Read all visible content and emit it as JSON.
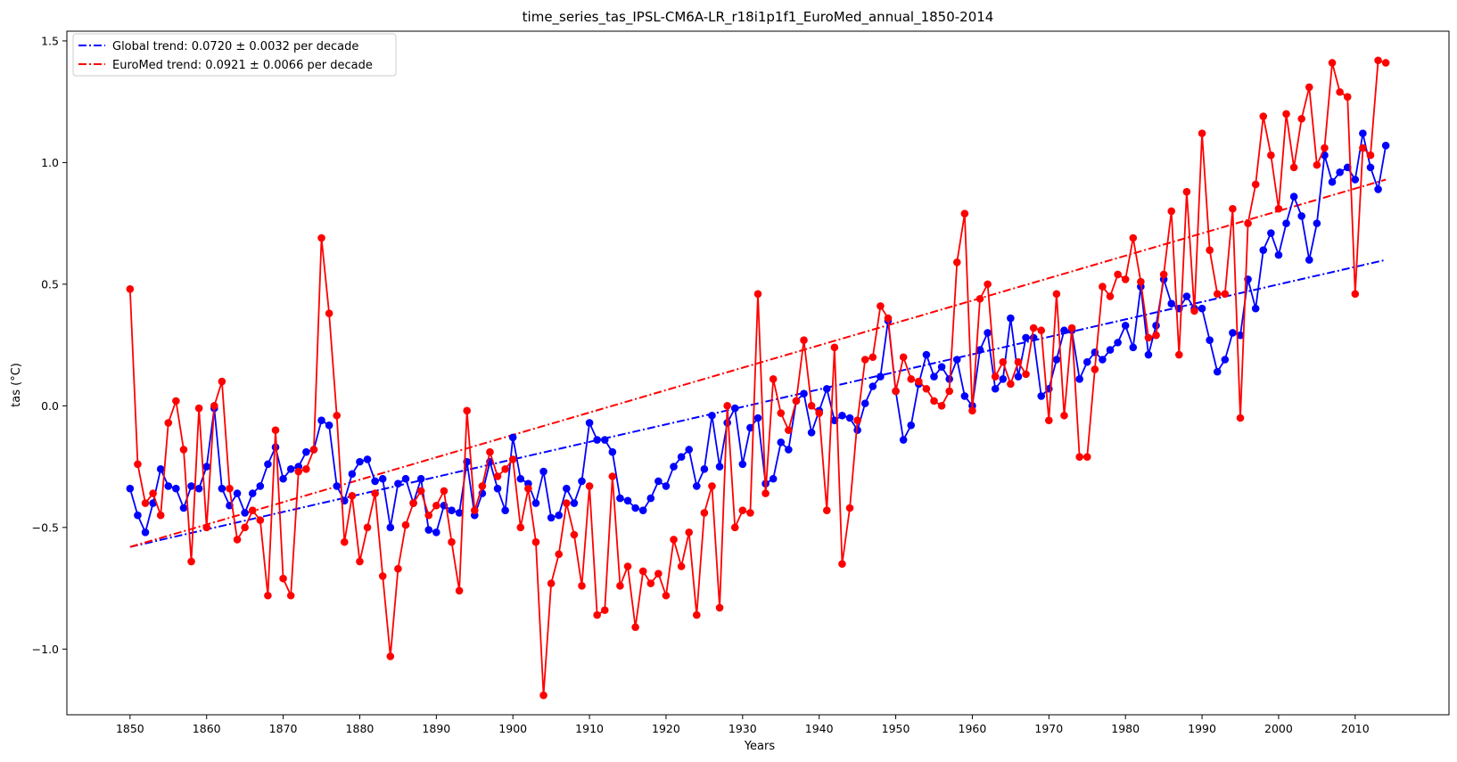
{
  "chart_data": {
    "type": "line",
    "title": "time_series_tas_IPSL-CM6A-LR_r18i1p1f1_EuroMed_annual_1850-2014",
    "xlabel": "Years",
    "ylabel": "tas (°C)",
    "xlim": [
      1841.75,
      2022.25
    ],
    "ylim": [
      -1.27,
      1.54
    ],
    "xticks": [
      1850,
      1860,
      1870,
      1880,
      1890,
      1900,
      1910,
      1920,
      1930,
      1940,
      1950,
      1960,
      1970,
      1980,
      1990,
      2000,
      2010
    ],
    "yticks": [
      -1.0,
      -0.5,
      0.0,
      0.5,
      1.0,
      1.5
    ],
    "ytick_labels": [
      "−1.0",
      "−0.5",
      "0.0",
      "0.5",
      "1.0",
      "1.5"
    ],
    "grid": false,
    "legend_position": "top-left",
    "x": [
      1850,
      1851,
      1852,
      1853,
      1854,
      1855,
      1856,
      1857,
      1858,
      1859,
      1860,
      1861,
      1862,
      1863,
      1864,
      1865,
      1866,
      1867,
      1868,
      1869,
      1870,
      1871,
      1872,
      1873,
      1874,
      1875,
      1876,
      1877,
      1878,
      1879,
      1880,
      1881,
      1882,
      1883,
      1884,
      1885,
      1886,
      1887,
      1888,
      1889,
      1890,
      1891,
      1892,
      1893,
      1894,
      1895,
      1896,
      1897,
      1898,
      1899,
      1900,
      1901,
      1902,
      1903,
      1904,
      1905,
      1906,
      1907,
      1908,
      1909,
      1910,
      1911,
      1912,
      1913,
      1914,
      1915,
      1916,
      1917,
      1918,
      1919,
      1920,
      1921,
      1922,
      1923,
      1924,
      1925,
      1926,
      1927,
      1928,
      1929,
      1930,
      1931,
      1932,
      1933,
      1934,
      1935,
      1936,
      1937,
      1938,
      1939,
      1940,
      1941,
      1942,
      1943,
      1944,
      1945,
      1946,
      1947,
      1948,
      1949,
      1950,
      1951,
      1952,
      1953,
      1954,
      1955,
      1956,
      1957,
      1958,
      1959,
      1960,
      1961,
      1962,
      1963,
      1964,
      1965,
      1966,
      1967,
      1968,
      1969,
      1970,
      1971,
      1972,
      1973,
      1974,
      1975,
      1976,
      1977,
      1978,
      1979,
      1980,
      1981,
      1982,
      1983,
      1984,
      1985,
      1986,
      1987,
      1988,
      1989,
      1990,
      1991,
      1992,
      1993,
      1994,
      1995,
      1996,
      1997,
      1998,
      1999,
      2000,
      2001,
      2002,
      2003,
      2004,
      2005,
      2006,
      2007,
      2008,
      2009,
      2010,
      2011,
      2012,
      2013,
      2014
    ],
    "series": [
      {
        "name": "Global",
        "color": "#0000ff",
        "values": [
          -0.34,
          -0.45,
          -0.52,
          -0.4,
          -0.26,
          -0.33,
          -0.34,
          -0.42,
          -0.33,
          -0.34,
          -0.25,
          -0.01,
          -0.34,
          -0.41,
          -0.36,
          -0.44,
          -0.36,
          -0.33,
          -0.24,
          -0.17,
          -0.3,
          -0.26,
          -0.25,
          -0.19,
          -0.18,
          -0.06,
          -0.08,
          -0.33,
          -0.39,
          -0.28,
          -0.23,
          -0.22,
          -0.31,
          -0.3,
          -0.5,
          -0.32,
          -0.3,
          -0.4,
          -0.3,
          -0.51,
          -0.52,
          -0.41,
          -0.43,
          -0.44,
          -0.23,
          -0.45,
          -0.36,
          -0.23,
          -0.34,
          -0.43,
          -0.13,
          -0.3,
          -0.32,
          -0.4,
          -0.27,
          -0.46,
          -0.45,
          -0.34,
          -0.4,
          -0.31,
          -0.07,
          -0.14,
          -0.14,
          -0.19,
          -0.38,
          -0.39,
          -0.42,
          -0.43,
          -0.38,
          -0.31,
          -0.33,
          -0.25,
          -0.21,
          -0.18,
          -0.33,
          -0.26,
          -0.04,
          -0.25,
          -0.07,
          -0.01,
          -0.24,
          -0.09,
          -0.05,
          -0.32,
          -0.3,
          -0.15,
          -0.18,
          0.02,
          0.05,
          -0.11,
          -0.02,
          0.07,
          -0.06,
          -0.04,
          -0.05,
          -0.1,
          0.01,
          0.08,
          0.12,
          0.35,
          0.06,
          -0.14,
          -0.08,
          0.09,
          0.21,
          0.12,
          0.16,
          0.11,
          0.19,
          0.04,
          0.0,
          0.23,
          0.3,
          0.07,
          0.11,
          0.36,
          0.12,
          0.28,
          0.28,
          0.04,
          0.07,
          0.19,
          0.31,
          0.31,
          0.11,
          0.18,
          0.22,
          0.19,
          0.23,
          0.26,
          0.33,
          0.24,
          0.49,
          0.21,
          0.33,
          0.52,
          0.42,
          0.4,
          0.45,
          0.4,
          0.4,
          0.27,
          0.14,
          0.19,
          0.3,
          0.29,
          0.52,
          0.4,
          0.64,
          0.71,
          0.62,
          0.75,
          0.86,
          0.78,
          0.6,
          0.75,
          1.03,
          0.92,
          0.96,
          0.98,
          0.93,
          1.12,
          0.98,
          0.89,
          1.07
        ]
      },
      {
        "name": "EuroMed",
        "color": "#ff0000",
        "values": [
          0.48,
          -0.24,
          -0.4,
          -0.36,
          -0.45,
          -0.07,
          0.02,
          -0.18,
          -0.64,
          -0.01,
          -0.5,
          0.0,
          0.1,
          -0.34,
          -0.55,
          -0.5,
          -0.43,
          -0.47,
          -0.78,
          -0.1,
          -0.71,
          -0.78,
          -0.27,
          -0.26,
          -0.18,
          0.69,
          0.38,
          -0.04,
          -0.56,
          -0.37,
          -0.64,
          -0.5,
          -0.36,
          -0.7,
          -1.03,
          -0.67,
          -0.49,
          -0.4,
          -0.35,
          -0.45,
          -0.41,
          -0.35,
          -0.56,
          -0.76,
          -0.02,
          -0.43,
          -0.33,
          -0.19,
          -0.29,
          -0.26,
          -0.22,
          -0.5,
          -0.34,
          -0.56,
          -1.19,
          -0.73,
          -0.61,
          -0.4,
          -0.53,
          -0.74,
          -0.33,
          -0.86,
          -0.84,
          -0.29,
          -0.74,
          -0.66,
          -0.91,
          -0.68,
          -0.73,
          -0.69,
          -0.78,
          -0.55,
          -0.66,
          -0.52,
          -0.86,
          -0.44,
          -0.33,
          -0.83,
          0.0,
          -0.5,
          -0.43,
          -0.44,
          0.46,
          -0.36,
          0.11,
          -0.03,
          -0.1,
          0.02,
          0.27,
          0.0,
          -0.03,
          -0.43,
          0.24,
          -0.65,
          -0.42,
          -0.06,
          0.19,
          0.2,
          0.41,
          0.36,
          0.06,
          0.2,
          0.11,
          0.1,
          0.07,
          0.02,
          0.0,
          0.06,
          0.59,
          0.79,
          -0.02,
          0.44,
          0.5,
          0.12,
          0.18,
          0.09,
          0.18,
          0.13,
          0.32,
          0.31,
          -0.06,
          0.46,
          -0.04,
          0.32,
          -0.21,
          -0.21,
          0.15,
          0.49,
          0.45,
          0.54,
          0.52,
          0.69,
          0.51,
          0.28,
          0.29,
          0.54,
          0.8,
          0.21,
          0.88,
          0.39,
          1.12,
          0.64,
          0.46,
          0.46,
          0.81,
          -0.05,
          0.75,
          0.91,
          1.19,
          1.03,
          0.81,
          1.2,
          0.98,
          1.18,
          1.31,
          0.99,
          1.06,
          1.41,
          1.29,
          1.27,
          0.46,
          1.06,
          1.03,
          1.42,
          1.41
        ]
      }
    ],
    "trends": [
      {
        "name": "Global trend",
        "label": "Global trend: 0.0720 ± 0.0032 per decade",
        "color": "#0000ff",
        "x": [
          1850,
          2014
        ],
        "y": [
          -0.58,
          0.6
        ]
      },
      {
        "name": "EuroMed trend",
        "label": "EuroMed trend: 0.0921 ± 0.0066 per decade",
        "color": "#ff0000",
        "x": [
          1850,
          2014
        ],
        "y": [
          -0.58,
          0.93
        ]
      }
    ]
  }
}
